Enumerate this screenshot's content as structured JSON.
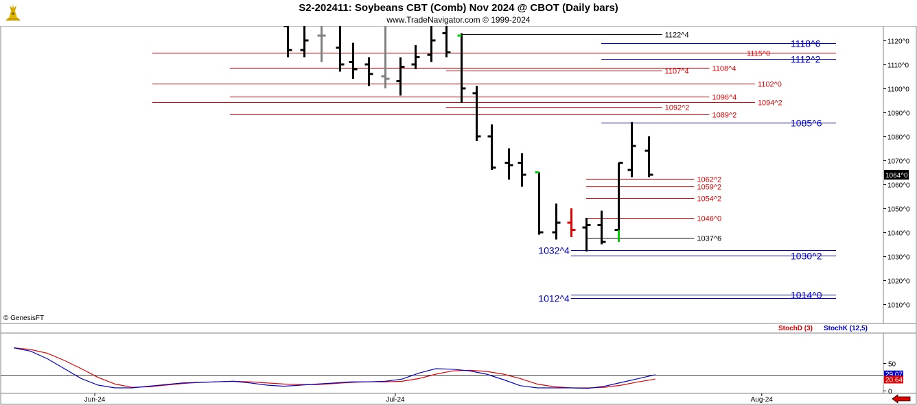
{
  "header": {
    "title": "S2-202411:  Soybeans CBT (Comb) Nov 2024 @ CBOT  (Daily bars)",
    "subtitle": "www.TradeNavigator.com © 1999-2024",
    "copyright": "© GenesisFT"
  },
  "colors": {
    "bar": "#000000",
    "bar_gray": "#808080",
    "bar_red": "#e00000",
    "bar_green": "#00cc00",
    "level_red": "#e00000",
    "level_black": "#000000",
    "level_blue": "#0000cc",
    "stoch_d": "#e00000",
    "stoch_k": "#0000cc"
  },
  "chart_data": [
    {
      "type": "ohlc",
      "title": "S2-202411:  Soybeans CBT (Comb) Nov 2024 @ CBOT  (Daily bars)",
      "ylim": [
        1002,
        1126
      ],
      "y_ticks": [
        "1010^0",
        "1020^0",
        "1030^0",
        "1040^0",
        "1050^0",
        "1060^0",
        "1070^0",
        "1080^0",
        "1090^0",
        "1100^0",
        "1110^0",
        "1120^0"
      ],
      "y_tick_values": [
        1010,
        1020,
        1030,
        1040,
        1050,
        1060,
        1070,
        1080,
        1090,
        1100,
        1110,
        1120
      ],
      "last_price_label": "1064^0",
      "last_price": 1064,
      "x_labels": [
        "Jun-24",
        "Jul-24",
        "Aug-24"
      ],
      "x_label_index": [
        4.8,
        22.6,
        44.3
      ],
      "bars": [
        {
          "i": 16.2,
          "o": 1126,
          "h": 1126,
          "l": 1113,
          "c": 1116,
          "color": "black"
        },
        {
          "i": 17.2,
          "o": 1116,
          "h": 1126,
          "l": 1113,
          "c": 1120,
          "color": "black"
        },
        {
          "i": 18.2,
          "o": 1122,
          "h": 1126,
          "l": 1111,
          "c": 1122,
          "color": "gray"
        },
        {
          "i": 19.3,
          "o": 1117,
          "h": 1126,
          "l": 1107,
          "c": 1110,
          "color": "black"
        },
        {
          "i": 20.1,
          "o": 1111,
          "h": 1119,
          "l": 1104,
          "c": 1108,
          "color": "black"
        },
        {
          "i": 21.0,
          "o": 1110,
          "h": 1113,
          "l": 1101,
          "c": 1106,
          "color": "black"
        },
        {
          "i": 22.0,
          "o": 1105,
          "h": 1126,
          "l": 1100,
          "c": 1104,
          "color": "gray"
        },
        {
          "i": 22.9,
          "o": 1103,
          "h": 1113,
          "l": 1097,
          "c": 1109,
          "color": "black"
        },
        {
          "i": 23.8,
          "o": 1110,
          "h": 1118,
          "l": 1108,
          "c": 1113,
          "color": "black"
        },
        {
          "i": 24.7,
          "o": 1114,
          "h": 1126,
          "l": 1111,
          "c": 1120,
          "color": "black"
        },
        {
          "i": 25.6,
          "o": 1123,
          "h": 1126,
          "l": 1113,
          "c": 1115,
          "color": "black"
        },
        {
          "i": 26.5,
          "o": 1122,
          "h": 1123,
          "l": 1094,
          "c": 1100,
          "color": "black",
          "green_open": true
        },
        {
          "i": 27.4,
          "o": 1098,
          "h": 1101,
          "l": 1078,
          "c": 1080,
          "color": "black"
        },
        {
          "i": 28.3,
          "o": 1080,
          "h": 1085,
          "l": 1066,
          "c": 1067,
          "color": "black"
        },
        {
          "i": 29.3,
          "o": 1069,
          "h": 1075,
          "l": 1062,
          "c": 1068,
          "color": "black"
        },
        {
          "i": 30.1,
          "o": 1069,
          "h": 1073,
          "l": 1059,
          "c": 1064,
          "color": "black"
        },
        {
          "i": 31.1,
          "o": 1065,
          "h": 1065,
          "l": 1039,
          "c": 1040,
          "color": "black",
          "green_open": true
        },
        {
          "i": 32.1,
          "o": 1040,
          "h": 1052,
          "l": 1037,
          "c": 1044,
          "color": "black"
        },
        {
          "i": 33.0,
          "o": 1044,
          "h": 1050,
          "l": 1038,
          "c": 1041,
          "color": "red"
        },
        {
          "i": 33.9,
          "o": 1042,
          "h": 1046,
          "l": 1032,
          "c": 1043,
          "color": "black"
        },
        {
          "i": 34.8,
          "o": 1043,
          "h": 1049,
          "l": 1035,
          "c": 1036,
          "color": "black"
        },
        {
          "i": 35.8,
          "o": 1041,
          "h": 1069,
          "l": 1036,
          "c": 1069,
          "color": "black",
          "green_low": true
        },
        {
          "i": 36.6,
          "o": 1066,
          "h": 1086,
          "l": 1063,
          "c": 1076,
          "color": "black"
        },
        {
          "i": 37.6,
          "o": 1074,
          "h": 1080,
          "l": 1063,
          "c": 1064,
          "color": "black"
        }
      ],
      "levels": [
        {
          "value": 1122.5,
          "label": "1122^4",
          "color": "black",
          "x1": 26.5,
          "x2": 38.4,
          "label_pos": "right"
        },
        {
          "value": 1118.75,
          "label": "1118^6",
          "color": "blue",
          "x1": 34.8,
          "x2": 48.7,
          "label_pos": "right"
        },
        {
          "value": 1115,
          "label": "1115^0",
          "color": "red",
          "x1": 8.2,
          "x2": 48.7,
          "label_pos": "inner"
        },
        {
          "value": 1112.25,
          "label": "1112^2",
          "color": "blue",
          "x1": 34.8,
          "x2": 48.7,
          "label_pos": "right"
        },
        {
          "value": 1108.5,
          "label": "1108^4",
          "color": "red",
          "x1": 12.8,
          "x2": 41.2,
          "label_pos": "right"
        },
        {
          "value": 1107.5,
          "label": "1107^4",
          "color": "red",
          "x1": 25.6,
          "x2": 38.4,
          "label_pos": "right"
        },
        {
          "value": 1102,
          "label": "1102^0",
          "color": "red",
          "x1": 8.2,
          "x2": 43.9,
          "label_pos": "right"
        },
        {
          "value": 1096.5,
          "label": "1096^4",
          "color": "red",
          "x1": 12.8,
          "x2": 41.2,
          "label_pos": "right"
        },
        {
          "value": 1094.25,
          "label": "1094^2",
          "color": "red",
          "x1": 8.2,
          "x2": 43.9,
          "label_pos": "right"
        },
        {
          "value": 1092.25,
          "label": "1092^2",
          "color": "red",
          "x1": 25.6,
          "x2": 38.4,
          "label_pos": "right"
        },
        {
          "value": 1089.25,
          "label": "1089^2",
          "color": "red",
          "x1": 12.8,
          "x2": 41.2,
          "label_pos": "right"
        },
        {
          "value": 1085.75,
          "label": "1085^6",
          "color": "blue",
          "x1": 34.8,
          "x2": 48.7,
          "label_pos": "right"
        },
        {
          "value": 1062.25,
          "label": "1062^2",
          "color": "red",
          "x1": 33.9,
          "x2": 40.3,
          "label_pos": "right"
        },
        {
          "value": 1059.25,
          "label": "1059^2",
          "color": "red",
          "x1": 33.9,
          "x2": 40.3,
          "label_pos": "right"
        },
        {
          "value": 1054.25,
          "label": "1054^2",
          "color": "red",
          "x1": 33.9,
          "x2": 40.3,
          "label_pos": "right"
        },
        {
          "value": 1046,
          "label": "1046^0",
          "color": "red",
          "x1": 33.9,
          "x2": 40.3,
          "label_pos": "right"
        },
        {
          "value": 1037.75,
          "label": "1037^6",
          "color": "black",
          "x1": 33.9,
          "x2": 40.3,
          "label_pos": "right"
        },
        {
          "value": 1032.5,
          "label": "1032^4",
          "color": "blue",
          "x1": 33.0,
          "x2": 48.7,
          "label_pos": "left"
        },
        {
          "value": 1030.25,
          "label": "1030^2",
          "color": "blue",
          "x1": 33.0,
          "x2": 48.7,
          "label_pos": "right"
        },
        {
          "value": 1014,
          "label": "1014^0",
          "color": "blue",
          "x1": 33.0,
          "x2": 48.7,
          "label_pos": "right"
        },
        {
          "value": 1012.5,
          "label": "1012^4",
          "color": "blue",
          "x1": 33.0,
          "x2": 48.7,
          "label_pos": "left"
        }
      ]
    },
    {
      "type": "line",
      "title": "",
      "legend": [
        "StochD (3)",
        "StochK (12,5)"
      ],
      "ylim": [
        0,
        100
      ],
      "y_ticks": [
        "0",
        "50"
      ],
      "y_tick_values": [
        0,
        50
      ],
      "reference_line": 29,
      "last_values": {
        "stoch_k": "29.07",
        "stoch_d": "20.64"
      },
      "series": [
        {
          "name": "StochD (3)",
          "color": "red",
          "points": [
            [
              0,
              78
            ],
            [
              1,
              75
            ],
            [
              2,
              68
            ],
            [
              3,
              55
            ],
            [
              4,
              40
            ],
            [
              5,
              24
            ],
            [
              6,
              12
            ],
            [
              7,
              6
            ],
            [
              8,
              7
            ],
            [
              9,
              10
            ],
            [
              10,
              13
            ],
            [
              11,
              15
            ],
            [
              12,
              16
            ],
            [
              13,
              17
            ],
            [
              14,
              16
            ],
            [
              15,
              14
            ],
            [
              16,
              12
            ],
            [
              17,
              11
            ],
            [
              18,
              11
            ],
            [
              19,
              13
            ],
            [
              20,
              15
            ],
            [
              21,
              16
            ],
            [
              22,
              16
            ],
            [
              23,
              17
            ],
            [
              24,
              22
            ],
            [
              25,
              30
            ],
            [
              26,
              36
            ],
            [
              27,
              37
            ],
            [
              28,
              35
            ],
            [
              29,
              30
            ],
            [
              30,
              22
            ],
            [
              31,
              12
            ],
            [
              32,
              7
            ],
            [
              33,
              5
            ],
            [
              34,
              5
            ],
            [
              35,
              6
            ],
            [
              36,
              10
            ],
            [
              37,
              16
            ],
            [
              38,
              21
            ]
          ]
        },
        {
          "name": "StochK (12,5)",
          "color": "blue",
          "points": [
            [
              0,
              78
            ],
            [
              1,
              72
            ],
            [
              2,
              58
            ],
            [
              3,
              40
            ],
            [
              4,
              22
            ],
            [
              5,
              10
            ],
            [
              6,
              5
            ],
            [
              7,
              5
            ],
            [
              8,
              8
            ],
            [
              9,
              11
            ],
            [
              10,
              14
            ],
            [
              11,
              15
            ],
            [
              12,
              16
            ],
            [
              13,
              17
            ],
            [
              14,
              14
            ],
            [
              15,
              10
            ],
            [
              16,
              8
            ],
            [
              17,
              10
            ],
            [
              18,
              12
            ],
            [
              19,
              14
            ],
            [
              20,
              16
            ],
            [
              21,
              16
            ],
            [
              22,
              17
            ],
            [
              23,
              21
            ],
            [
              24,
              32
            ],
            [
              25,
              40
            ],
            [
              26,
              39
            ],
            [
              27,
              36
            ],
            [
              28,
              30
            ],
            [
              29,
              20
            ],
            [
              30,
              9
            ],
            [
              31,
              5
            ],
            [
              32,
              5
            ],
            [
              33,
              5
            ],
            [
              34,
              4
            ],
            [
              35,
              8
            ],
            [
              36,
              15
            ],
            [
              37,
              22
            ],
            [
              38,
              29
            ]
          ]
        }
      ]
    }
  ]
}
